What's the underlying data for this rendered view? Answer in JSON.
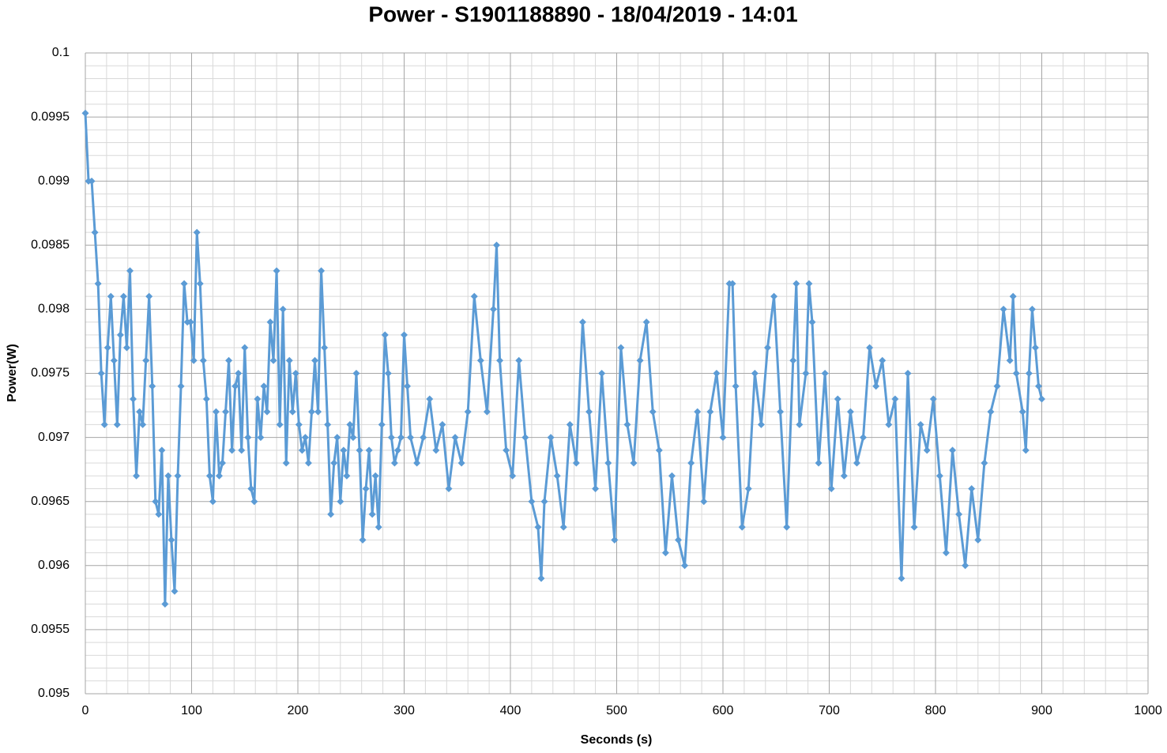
{
  "chart_data": {
    "type": "line",
    "title": "Power - S1901188890 - 18/04/2019 - 14:01",
    "x_label": "Seconds (s)",
    "y_label": "Power(W)",
    "xlim": [
      0,
      1000
    ],
    "xticks": [
      0,
      100,
      200,
      300,
      400,
      500,
      600,
      700,
      800,
      900,
      1000
    ],
    "ylim": [
      0.095,
      0.1
    ],
    "yticks": [
      0.095,
      0.0955,
      0.096,
      0.0965,
      0.097,
      0.0975,
      0.098,
      0.0985,
      0.099,
      0.0995,
      0.1
    ],
    "grid": true,
    "minor_grid": true,
    "x": [
      0,
      3,
      6,
      9,
      12,
      15,
      18,
      21,
      24,
      27,
      30,
      33,
      36,
      39,
      42,
      45,
      48,
      51,
      54,
      57,
      60,
      63,
      66,
      69,
      72,
      75,
      78,
      81,
      84,
      87,
      90,
      93,
      96,
      99,
      102,
      105,
      108,
      111,
      114,
      117,
      120,
      123,
      126,
      129,
      132,
      135,
      138,
      141,
      144,
      147,
      150,
      153,
      156,
      159,
      162,
      165,
      168,
      171,
      174,
      177,
      180,
      183,
      186,
      189,
      192,
      195,
      198,
      201,
      204,
      207,
      210,
      213,
      216,
      219,
      222,
      225,
      228,
      231,
      234,
      237,
      240,
      243,
      246,
      249,
      252,
      255,
      258,
      261,
      264,
      267,
      270,
      273,
      276,
      279,
      282,
      285,
      288,
      291,
      294,
      297,
      300,
      303,
      306,
      312,
      318,
      324,
      330,
      336,
      342,
      348,
      354,
      360,
      366,
      372,
      378,
      384,
      387,
      390,
      396,
      402,
      408,
      414,
      420,
      426,
      429,
      432,
      438,
      444,
      450,
      456,
      462,
      468,
      474,
      480,
      486,
      492,
      498,
      504,
      510,
      516,
      522,
      528,
      534,
      540,
      546,
      552,
      558,
      564,
      570,
      576,
      582,
      588,
      594,
      600,
      606,
      609,
      612,
      618,
      624,
      630,
      636,
      642,
      648,
      654,
      660,
      666,
      669,
      672,
      678,
      681,
      684,
      690,
      696,
      702,
      708,
      714,
      720,
      726,
      732,
      738,
      744,
      750,
      756,
      762,
      768,
      774,
      780,
      786,
      792,
      798,
      804,
      810,
      816,
      822,
      828,
      834,
      840,
      846,
      852,
      858,
      864,
      870,
      873,
      876,
      882,
      885,
      888,
      891,
      894,
      897,
      900
    ],
    "series": [
      {
        "name": "Power(W)",
        "color": "#5b9bd5",
        "values": [
          0.09953,
          0.099,
          0.099,
          0.0986,
          0.0982,
          0.0975,
          0.0971,
          0.0977,
          0.0981,
          0.0976,
          0.0971,
          0.0978,
          0.0981,
          0.0977,
          0.0983,
          0.0973,
          0.0967,
          0.0972,
          0.0971,
          0.0976,
          0.0981,
          0.0974,
          0.0965,
          0.0964,
          0.0969,
          0.0957,
          0.0967,
          0.0962,
          0.0958,
          0.0967,
          0.0974,
          0.0982,
          0.0979,
          0.0979,
          0.0976,
          0.0986,
          0.0982,
          0.0976,
          0.0973,
          0.0967,
          0.0965,
          0.0972,
          0.0967,
          0.0968,
          0.0972,
          0.0976,
          0.0969,
          0.0974,
          0.0975,
          0.0969,
          0.0977,
          0.097,
          0.0966,
          0.0965,
          0.0973,
          0.097,
          0.0974,
          0.0972,
          0.0979,
          0.0976,
          0.0983,
          0.0971,
          0.098,
          0.0968,
          0.0976,
          0.0972,
          0.0975,
          0.0971,
          0.0969,
          0.097,
          0.0968,
          0.0972,
          0.0976,
          0.0972,
          0.0983,
          0.0977,
          0.0971,
          0.0964,
          0.0968,
          0.097,
          0.0965,
          0.0969,
          0.0967,
          0.0971,
          0.097,
          0.0975,
          0.0969,
          0.0962,
          0.0966,
          0.0969,
          0.0964,
          0.0967,
          0.0963,
          0.0971,
          0.0978,
          0.0975,
          0.097,
          0.0968,
          0.0969,
          0.097,
          0.0978,
          0.0974,
          0.097,
          0.0968,
          0.097,
          0.0973,
          0.0969,
          0.0971,
          0.0966,
          0.097,
          0.0968,
          0.0972,
          0.0981,
          0.0976,
          0.0972,
          0.098,
          0.0985,
          0.0976,
          0.0969,
          0.0967,
          0.0976,
          0.097,
          0.0965,
          0.0963,
          0.0959,
          0.0965,
          0.097,
          0.0967,
          0.0963,
          0.0971,
          0.0968,
          0.0979,
          0.0972,
          0.0966,
          0.0975,
          0.0968,
          0.0962,
          0.0977,
          0.0971,
          0.0968,
          0.0976,
          0.0979,
          0.0972,
          0.0969,
          0.0961,
          0.0967,
          0.0962,
          0.096,
          0.0968,
          0.0972,
          0.0965,
          0.0972,
          0.0975,
          0.097,
          0.0982,
          0.0982,
          0.0974,
          0.0963,
          0.0966,
          0.0975,
          0.0971,
          0.0977,
          0.0981,
          0.0972,
          0.0963,
          0.0976,
          0.0982,
          0.0971,
          0.0975,
          0.0982,
          0.0979,
          0.0968,
          0.0975,
          0.0966,
          0.0973,
          0.0967,
          0.0972,
          0.0968,
          0.097,
          0.0977,
          0.0974,
          0.0976,
          0.0971,
          0.0973,
          0.0959,
          0.0975,
          0.0963,
          0.0971,
          0.0969,
          0.0973,
          0.0967,
          0.0961,
          0.0969,
          0.0964,
          0.096,
          0.0966,
          0.0962,
          0.0968,
          0.0972,
          0.0974,
          0.098,
          0.0976,
          0.0981,
          0.0975,
          0.0972,
          0.0969,
          0.0975,
          0.098,
          0.0977,
          0.0974,
          0.0973
        ]
      }
    ]
  }
}
